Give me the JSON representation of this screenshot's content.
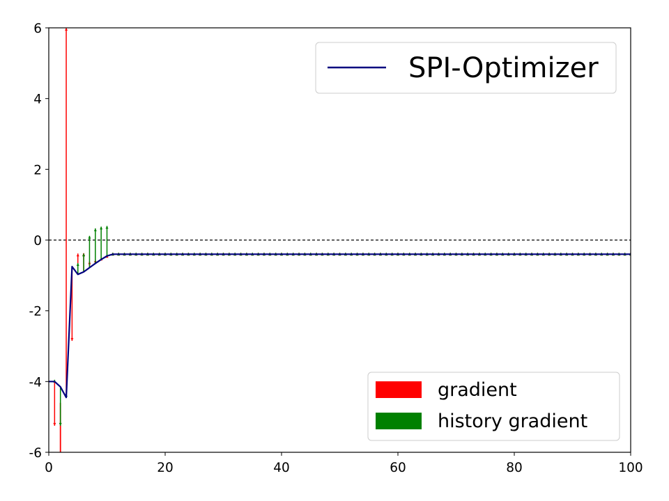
{
  "chart_data": {
    "type": "line",
    "xlim": [
      0,
      100
    ],
    "ylim": [
      -6,
      6
    ],
    "x_ticks": [
      0,
      20,
      40,
      60,
      80,
      100
    ],
    "y_ticks": [
      -6,
      -4,
      -2,
      0,
      2,
      4,
      6
    ],
    "x_tick_labels": [
      "0",
      "20",
      "40",
      "60",
      "80",
      "100"
    ],
    "y_tick_labels": [
      "-6",
      "-4",
      "-2",
      "0",
      "2",
      "4",
      "6"
    ],
    "reference_line": {
      "y": 0,
      "style": "dashed",
      "color": "#000000"
    },
    "series": [
      {
        "name": "SPI-Optimizer",
        "color": "#00007f",
        "x": [
          0,
          1,
          2,
          3,
          4,
          5,
          6,
          7,
          8,
          9,
          10,
          11,
          12,
          15,
          20,
          30,
          40,
          50,
          60,
          70,
          80,
          90,
          100
        ],
        "y": [
          -4.0,
          -4.0,
          -4.15,
          -4.45,
          -0.75,
          -0.97,
          -0.9,
          -0.78,
          -0.66,
          -0.55,
          -0.45,
          -0.4,
          -0.4,
          -0.4,
          -0.4,
          -0.4,
          -0.4,
          -0.4,
          -0.4,
          -0.4,
          -0.4,
          -0.4,
          -0.4
        ]
      }
    ],
    "gradient_arrows": [
      {
        "x": 1,
        "y0": -4.0,
        "y1": -5.25
      },
      {
        "x": 3,
        "y0": -4.45,
        "y1": 6.0
      },
      {
        "x": 4,
        "y0": -0.75,
        "y1": -2.85
      },
      {
        "x": 5,
        "y0": -0.97,
        "y1": -0.38
      },
      {
        "x": 6,
        "y0": -0.9,
        "y1": -0.37
      },
      {
        "x": 7,
        "y0": -0.78,
        "y1": -0.6
      },
      {
        "x": 8,
        "y0": -0.66,
        "y1": -0.55
      },
      {
        "x": 9,
        "y0": -0.55,
        "y1": -0.5
      },
      {
        "x": 10,
        "y0": -0.45,
        "y1": -0.42
      }
    ],
    "gradient_lines": [
      {
        "x": 2,
        "y0": -6.0,
        "y1": -4.6
      }
    ],
    "history_arrows": [
      {
        "x": 1,
        "y0": -4.0,
        "y1": -3.95
      },
      {
        "x": 2,
        "y0": -4.15,
        "y1": -5.25
      },
      {
        "x": 3,
        "y0": -4.45,
        "y1": -4.35
      },
      {
        "x": 5,
        "y0": -0.97,
        "y1": -0.65
      },
      {
        "x": 6,
        "y0": -0.9,
        "y1": -0.38
      },
      {
        "x": 7,
        "y0": -0.78,
        "y1": 0.12
      },
      {
        "x": 8,
        "y0": -0.66,
        "y1": 0.33
      },
      {
        "x": 9,
        "y0": -0.55,
        "y1": 0.38
      },
      {
        "x": 10,
        "y0": -0.45,
        "y1": 0.4
      }
    ],
    "flat_arrow_range": {
      "x_start": 11,
      "x_end": 100,
      "y0": -0.4,
      "y1": -0.36
    },
    "line_legend": {
      "label": "SPI-Optimizer",
      "placement": "upper-right"
    },
    "arrow_legend": {
      "placement": "lower-right",
      "entries": [
        {
          "label": "gradient",
          "color": "#ff0000"
        },
        {
          "label": "history gradient",
          "color": "#008000"
        }
      ]
    },
    "grid": false
  }
}
